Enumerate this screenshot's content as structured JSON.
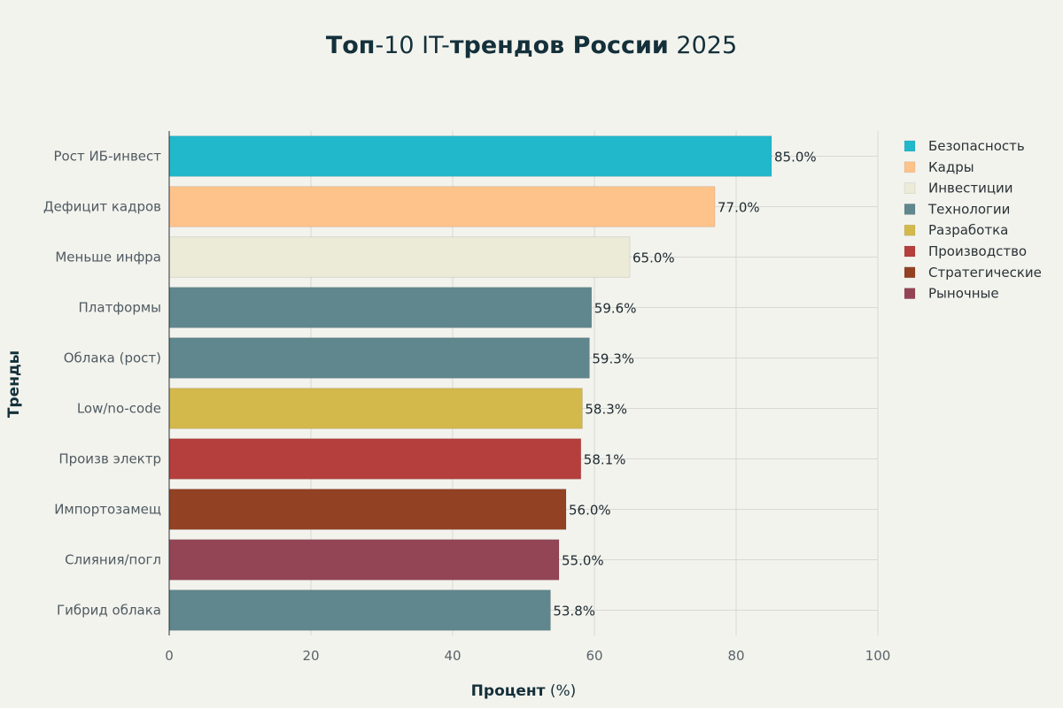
{
  "chart_data": {
    "type": "bar",
    "orientation": "horizontal",
    "title_parts": [
      {
        "text": "Топ",
        "bold": true
      },
      {
        "text": "-10 IT-",
        "bold": false
      },
      {
        "text": "трендов России",
        "bold": true
      },
      {
        "text": " 2025",
        "bold": false
      }
    ],
    "xlabel_parts": [
      {
        "text": "Процент",
        "bold": true
      },
      {
        "text": " (%)",
        "bold": false
      }
    ],
    "ylabel": "Тренды",
    "xlim": [
      0,
      100
    ],
    "xticks": [
      "0",
      "20",
      "40",
      "60",
      "80",
      "100"
    ],
    "grid": true,
    "legend_position": "top-right",
    "categories": [
      {
        "name": "Безопасность",
        "color": "#22b8cc"
      },
      {
        "name": "Кадры",
        "color": "#fec28b"
      },
      {
        "name": "Инвестиции",
        "color": "#ecebd7"
      },
      {
        "name": "Технологии",
        "color": "#5f878d"
      },
      {
        "name": "Разработка",
        "color": "#d3b94c"
      },
      {
        "name": "Производство",
        "color": "#b53f3d"
      },
      {
        "name": "Стратегические",
        "color": "#924223"
      },
      {
        "name": "Рыночные",
        "color": "#934455"
      }
    ],
    "bars": [
      {
        "label": "Рост ИБ-инвест",
        "value": 85.0,
        "value_text": "85.0%",
        "category": 0
      },
      {
        "label": "Дефицит кадров",
        "value": 77.0,
        "value_text": "77.0%",
        "category": 1
      },
      {
        "label": "Меньше инфра",
        "value": 65.0,
        "value_text": "65.0%",
        "category": 2
      },
      {
        "label": "Платформы",
        "value": 59.6,
        "value_text": "59.6%",
        "category": 3
      },
      {
        "label": "Облака (рост)",
        "value": 59.3,
        "value_text": "59.3%",
        "category": 3
      },
      {
        "label": "Low/no-code",
        "value": 58.3,
        "value_text": "58.3%",
        "category": 4
      },
      {
        "label": "Произв электр",
        "value": 58.1,
        "value_text": "58.1%",
        "category": 5
      },
      {
        "label": "Импортозамещ",
        "value": 56.0,
        "value_text": "56.0%",
        "category": 6
      },
      {
        "label": "Слияния/погл",
        "value": 55.0,
        "value_text": "55.0%",
        "category": 7
      },
      {
        "label": "Гибрид облака",
        "value": 53.8,
        "value_text": "53.8%",
        "category": 3
      }
    ]
  }
}
